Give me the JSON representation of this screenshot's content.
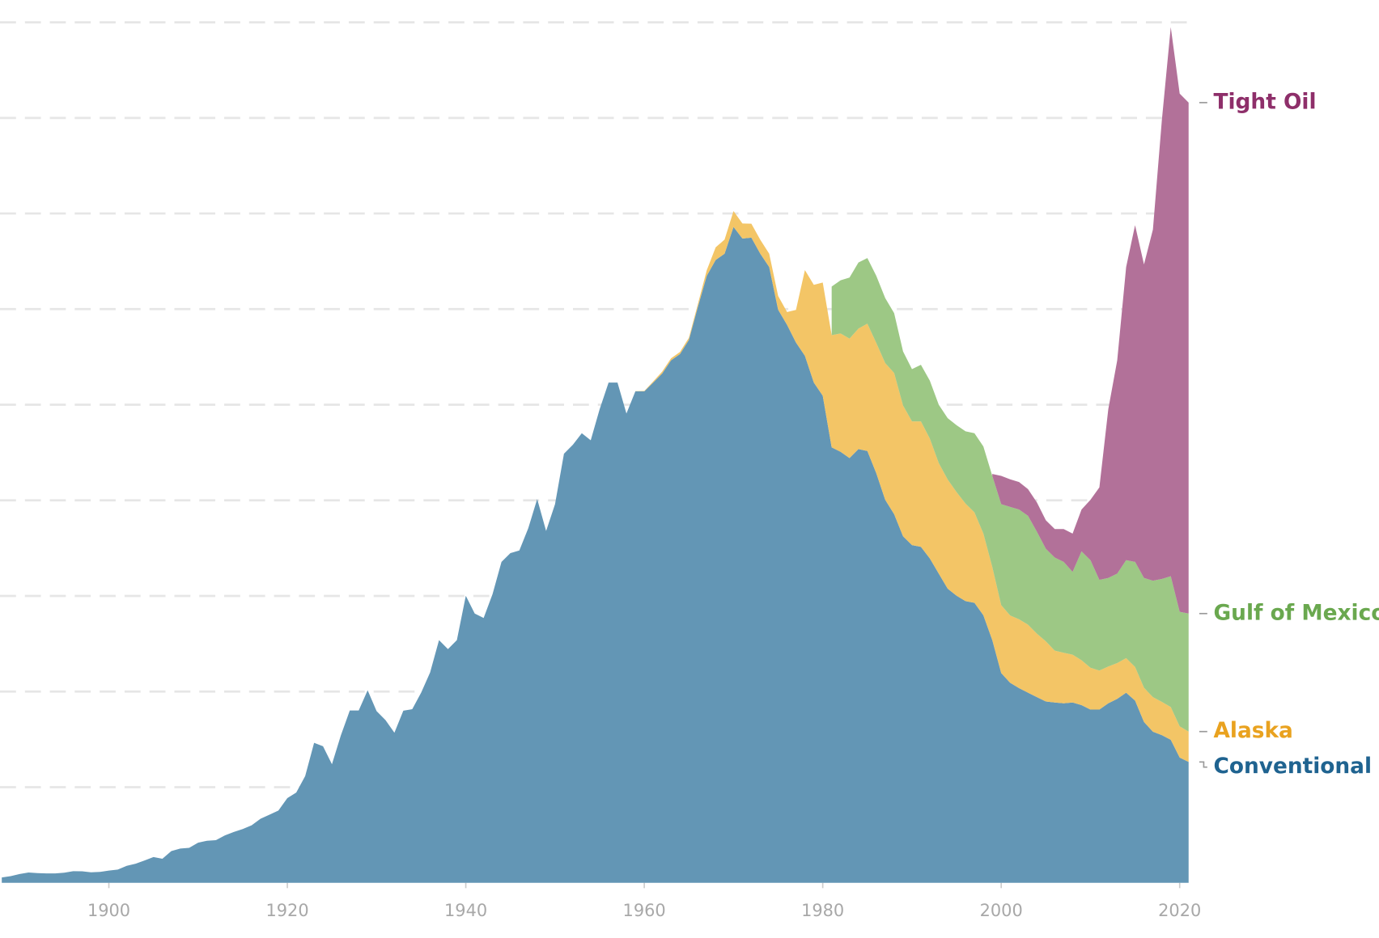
{
  "chart_data": {
    "type": "stacked_area",
    "x": [
      1888,
      1889,
      1890,
      1891,
      1892,
      1893,
      1894,
      1895,
      1896,
      1897,
      1898,
      1899,
      1900,
      1901,
      1902,
      1903,
      1904,
      1905,
      1906,
      1907,
      1908,
      1909,
      1910,
      1911,
      1912,
      1913,
      1914,
      1915,
      1916,
      1917,
      1918,
      1919,
      1920,
      1921,
      1922,
      1923,
      1924,
      1925,
      1926,
      1927,
      1928,
      1929,
      1930,
      1931,
      1932,
      1933,
      1934,
      1935,
      1936,
      1937,
      1938,
      1939,
      1940,
      1941,
      1942,
      1943,
      1944,
      1945,
      1946,
      1947,
      1948,
      1949,
      1950,
      1951,
      1952,
      1953,
      1954,
      1955,
      1956,
      1957,
      1958,
      1959,
      1960,
      1961,
      1962,
      1963,
      1964,
      1965,
      1966,
      1967,
      1968,
      1969,
      1970,
      1971,
      1972,
      1973,
      1974,
      1975,
      1976,
      1977,
      1978,
      1979,
      1980,
      1981,
      1982,
      1983,
      1984,
      1985,
      1986,
      1987,
      1988,
      1989,
      1990,
      1991,
      1992,
      1993,
      1994,
      1995,
      1996,
      1997,
      1998,
      1999,
      2000,
      2001,
      2002,
      2003,
      2004,
      2005,
      2006,
      2007,
      2008,
      2009,
      2010,
      2011,
      2012,
      2013,
      2014,
      2015,
      2016,
      2017,
      2018,
      2019,
      2020,
      2021
    ],
    "series": [
      {
        "name": "Conventional",
        "color": "#6396b5",
        "label_color": "#1f6390",
        "values": [
          28,
          35,
          46,
          54,
          51,
          49,
          49,
          53,
          61,
          60,
          55,
          57,
          64,
          69,
          89,
          100,
          117,
          135,
          126,
          166,
          179,
          183,
          210,
          220,
          223,
          248,
          266,
          281,
          301,
          335,
          356,
          378,
          443,
          472,
          558,
          732,
          714,
          620,
          771,
          901,
          901,
          1007,
          898,
          851,
          785,
          900,
          908,
          995,
          1100,
          1269,
          1222,
          1269,
          1501,
          1408,
          1385,
          1510,
          1678,
          1724,
          1738,
          1854,
          2007,
          1840,
          1980,
          2244,
          2291,
          2351,
          2314,
          2477,
          2616,
          2616,
          2454,
          2570,
          2570,
          2616,
          2663,
          2732,
          2765,
          2839,
          3011,
          3174,
          3257,
          3290,
          3430,
          3369,
          3374,
          3290,
          3220,
          2997,
          2918,
          2825,
          2756,
          2616,
          2547,
          2277,
          2254,
          2221,
          2268,
          2258,
          2142,
          2003,
          1928,
          1812,
          1766,
          1757,
          1696,
          1617,
          1538,
          1501,
          1473,
          1464,
          1399,
          1269,
          1097,
          1046,
          1018,
          994,
          971,
          948,
          943,
          939,
          943,
          929,
          906,
          906,
          939,
          962,
          994,
          953,
          841,
          790,
          772,
          748,
          655,
          632
        ]
      },
      {
        "name": "Alaska",
        "color": "#f3c566",
        "label_color": "#e9a21f",
        "values": [
          null,
          null,
          null,
          null,
          null,
          null,
          null,
          null,
          null,
          null,
          null,
          null,
          null,
          null,
          null,
          null,
          null,
          null,
          null,
          null,
          null,
          null,
          null,
          null,
          null,
          null,
          null,
          null,
          null,
          null,
          null,
          null,
          null,
          null,
          null,
          null,
          null,
          null,
          null,
          null,
          null,
          null,
          null,
          null,
          null,
          null,
          null,
          null,
          null,
          null,
          null,
          null,
          null,
          null,
          null,
          null,
          null,
          null,
          null,
          null,
          null,
          null,
          null,
          null,
          null,
          null,
          null,
          null,
          null,
          null,
          null,
          1,
          2,
          6,
          10,
          11,
          11,
          11,
          14,
          29,
          66,
          74,
          83,
          79,
          73,
          73,
          70,
          72,
          67,
          171,
          448,
          511,
          592,
          587,
          619,
          625,
          630,
          666,
          681,
          715,
          738,
          684,
          647,
          656,
          627,
          578,
          571,
          542,
          510,
          473,
          428,
          383,
          355,
          352,
          360,
          356,
          332,
          315,
          271,
          264,
          250,
          235,
          219,
          204,
          192,
          187,
          181,
          176,
          179,
          181,
          174,
          171,
          163,
          159
        ]
      },
      {
        "name": "Gulf of Mexico",
        "color": "#9dc885",
        "label_color": "#6aa84f",
        "values": [
          null,
          null,
          null,
          null,
          null,
          null,
          null,
          null,
          null,
          null,
          null,
          null,
          null,
          null,
          null,
          null,
          null,
          null,
          null,
          null,
          null,
          null,
          null,
          null,
          null,
          null,
          null,
          null,
          null,
          null,
          null,
          null,
          null,
          null,
          null,
          null,
          null,
          null,
          null,
          null,
          null,
          null,
          null,
          null,
          null,
          null,
          null,
          null,
          null,
          null,
          null,
          null,
          null,
          null,
          null,
          null,
          null,
          null,
          null,
          null,
          null,
          null,
          null,
          null,
          null,
          null,
          null,
          null,
          null,
          null,
          null,
          null,
          null,
          null,
          null,
          null,
          null,
          null,
          null,
          null,
          null,
          null,
          null,
          null,
          null,
          null,
          null,
          null,
          null,
          null,
          null,
          null,
          null,
          254,
          278,
          319,
          346,
          343,
          351,
          340,
          313,
          283,
          273,
          296,
          303,
          305,
          321,
          350,
          378,
          414,
          455,
          476,
          528,
          568,
          574,
          569,
          533,
          484,
          487,
          475,
          433,
          569,
          562,
          474,
          463,
          468,
          512,
          549,
          574,
          609,
          643,
          684,
          599,
          617
        ]
      },
      {
        "name": "Tight Oil",
        "color": "#b27199",
        "label_color": "#8e2f6a",
        "values": [
          null,
          null,
          null,
          null,
          null,
          null,
          null,
          null,
          null,
          null,
          null,
          null,
          null,
          null,
          null,
          null,
          null,
          null,
          null,
          null,
          null,
          null,
          null,
          null,
          null,
          null,
          null,
          null,
          null,
          null,
          null,
          null,
          null,
          null,
          null,
          null,
          null,
          null,
          null,
          null,
          null,
          null,
          null,
          null,
          null,
          null,
          null,
          null,
          null,
          null,
          null,
          null,
          null,
          null,
          null,
          null,
          null,
          null,
          null,
          null,
          null,
          null,
          null,
          null,
          null,
          null,
          null,
          null,
          null,
          null,
          null,
          null,
          null,
          null,
          null,
          null,
          null,
          null,
          null,
          null,
          null,
          null,
          null,
          null,
          null,
          null,
          null,
          null,
          null,
          null,
          null,
          null,
          null,
          null,
          null,
          null,
          null,
          null,
          null,
          null,
          null,
          null,
          null,
          null,
          null,
          null,
          null,
          null,
          null,
          null,
          null,
          10,
          148,
          144,
          144,
          140,
          153,
          149,
          149,
          172,
          200,
          219,
          316,
          484,
          883,
          1115,
          1533,
          1761,
          1640,
          1836,
          2398,
          2872,
          2710,
          2672
        ]
      }
    ],
    "xlim": [
      1888,
      2021
    ],
    "xticks": [
      1900,
      1920,
      1940,
      1960,
      1980,
      2000,
      2020
    ],
    "ylim": [
      0,
      4500
    ],
    "yticks": [
      500,
      1000,
      1500,
      2000,
      2500,
      3000,
      3500,
      4000,
      4500
    ],
    "grid": true
  }
}
